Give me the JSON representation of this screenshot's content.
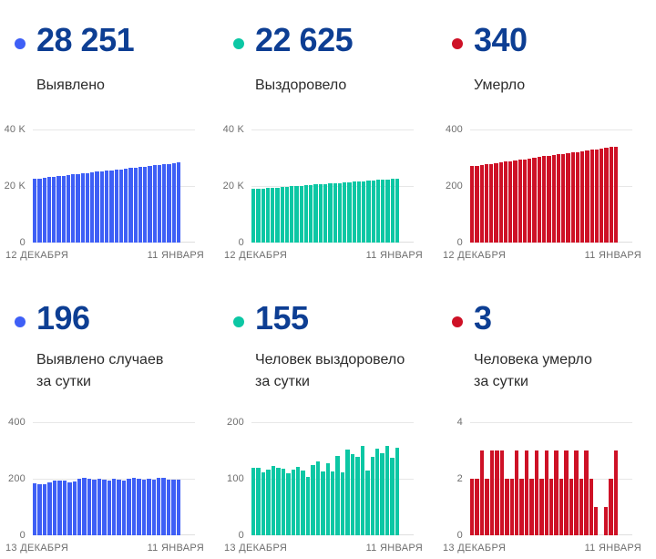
{
  "colors": {
    "blue": "#3e5ff6",
    "teal": "#0cc7a4",
    "red": "#ce1126",
    "stat_value_text": "#0d3e93",
    "label_text": "#2b2b2b",
    "axis_text": "#6e6e6e",
    "grid_line": "#e7e7e7"
  },
  "chart_data": [
    {
      "type": "bar",
      "stat_value": "28 251",
      "label_lines": [
        "Выявлено"
      ],
      "color": "#3e5ff6",
      "yticks": [
        "40 K",
        "20 K",
        "0"
      ],
      "ylim": [
        0,
        40000
      ],
      "x_start": "12 ДЕКАБРЯ",
      "x_end": "11 ЯНВАРЯ",
      "values": [
        22525,
        22715,
        22905,
        23095,
        23290,
        23480,
        23670,
        23860,
        24055,
        24245,
        24435,
        24625,
        24820,
        25010,
        25200,
        25390,
        25585,
        25775,
        25965,
        26155,
        26350,
        26540,
        26730,
        26920,
        27115,
        27305,
        27495,
        27685,
        27880,
        28065,
        28251
      ]
    },
    {
      "type": "bar",
      "stat_value": "22 625",
      "label_lines": [
        "Выздоровело"
      ],
      "color": "#0cc7a4",
      "yticks": [
        "40 K",
        "20 K",
        "0"
      ],
      "ylim": [
        0,
        40000
      ],
      "x_start": "12 ДЕКАБРЯ",
      "x_end": "11 ЯНВАРЯ",
      "values": [
        18900,
        19025,
        19150,
        19270,
        19395,
        19520,
        19645,
        19765,
        19890,
        20015,
        20140,
        20260,
        20385,
        20510,
        20635,
        20755,
        20880,
        21005,
        21130,
        21250,
        21375,
        21500,
        21625,
        21745,
        21870,
        21995,
        22120,
        22240,
        22365,
        22495,
        22625
      ]
    },
    {
      "type": "bar",
      "stat_value": "340",
      "label_lines": [
        "Умерло"
      ],
      "color": "#ce1126",
      "yticks": [
        "400",
        "200",
        "0"
      ],
      "ylim": [
        0,
        400
      ],
      "x_start": "12 ДЕКАБРЯ",
      "x_end": "11 ЯНВАРЯ",
      "values": [
        270,
        272,
        274,
        277,
        279,
        281,
        284,
        286,
        288,
        291,
        293,
        295,
        298,
        300,
        302,
        305,
        307,
        309,
        312,
        314,
        316,
        319,
        321,
        323,
        326,
        328,
        330,
        333,
        335,
        338,
        340
      ]
    },
    {
      "type": "bar",
      "stat_value": "196",
      "label_lines": [
        "Выявлено случаев",
        "за сутки"
      ],
      "color": "#3e5ff6",
      "yticks": [
        "400",
        "200",
        "0"
      ],
      "ylim": [
        0,
        400
      ],
      "x_start": "13 ДЕКАБРЯ",
      "x_end": "11 ЯНВАРЯ",
      "values": [
        184,
        180,
        182,
        188,
        193,
        195,
        192,
        188,
        191,
        200,
        203,
        200,
        198,
        200,
        196,
        193,
        200,
        198,
        195,
        199,
        204,
        201,
        197,
        200,
        197,
        204,
        202,
        198,
        197,
        196
      ]
    },
    {
      "type": "bar",
      "stat_value": "155",
      "label_lines": [
        "Человек выздоровело",
        "за сутки"
      ],
      "color": "#0cc7a4",
      "yticks": [
        "200",
        "100",
        "0"
      ],
      "ylim": [
        0,
        200
      ],
      "x_start": "13 ДЕКАБРЯ",
      "x_end": "11 ЯНВАРЯ",
      "values": [
        120,
        119,
        112,
        116,
        122,
        120,
        118,
        110,
        116,
        121,
        115,
        103,
        125,
        130,
        113,
        127,
        113,
        140,
        111,
        152,
        143,
        138,
        158,
        114,
        139,
        153,
        145,
        158,
        137,
        155
      ]
    },
    {
      "type": "bar",
      "stat_value": "3",
      "label_lines": [
        "Человека умерло",
        "за сутки"
      ],
      "color": "#ce1126",
      "yticks": [
        "4",
        "2",
        "0"
      ],
      "ylim": [
        0,
        4
      ],
      "x_start": "13 ДЕКАБРЯ",
      "x_end": "11 ЯНВАРЯ",
      "values": [
        2,
        2,
        3,
        2,
        3,
        3,
        3,
        2,
        2,
        3,
        2,
        3,
        2,
        3,
        2,
        3,
        2,
        3,
        2,
        3,
        2,
        3,
        2,
        3,
        2,
        1,
        0,
        1,
        2,
        3
      ]
    }
  ]
}
